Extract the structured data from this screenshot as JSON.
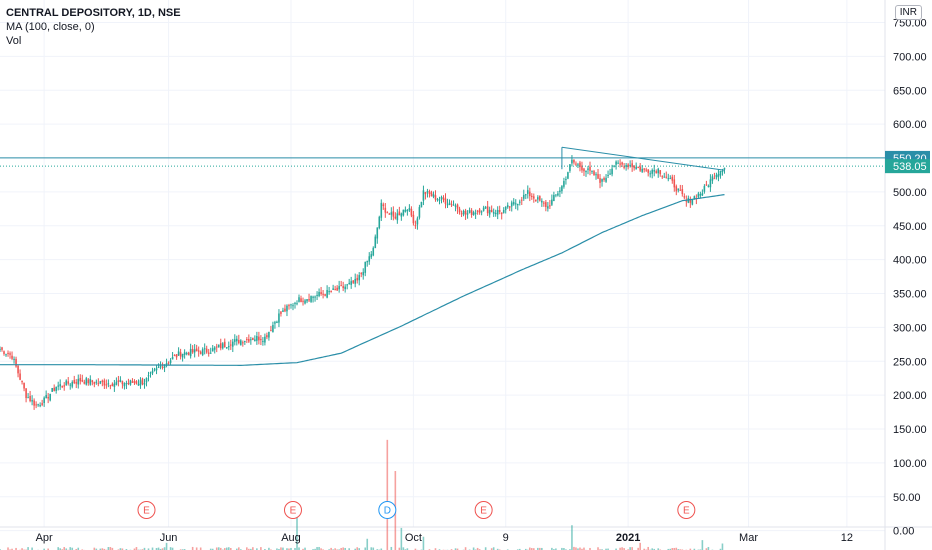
{
  "chart_data": {
    "type": "candlestick",
    "title": "CENTRAL DEPOSITORY, 1D, NSE",
    "indicators": [
      "MA (100, close, 0)",
      "Vol"
    ],
    "currency": "INR",
    "price_axis": {
      "min": -30,
      "max": 770,
      "ticks": [
        "750.00",
        "700.00",
        "650.00",
        "600.00",
        "550.00",
        "500.00",
        "450.00",
        "400.00",
        "350.00",
        "300.00",
        "250.00",
        "200.00",
        "150.00",
        "100.00",
        "50.00",
        "0.00"
      ],
      "tick_values": [
        750,
        700,
        650,
        600,
        550,
        500,
        450,
        400,
        350,
        300,
        250,
        200,
        150,
        100,
        50,
        0
      ]
    },
    "time_axis": {
      "labels": [
        "Apr",
        "Jun",
        "Aug",
        "Oct",
        "9",
        "2021",
        "Mar",
        "12"
      ],
      "label_days": [
        22,
        84,
        145,
        206,
        252,
        313,
        373,
        422
      ],
      "bold": [
        "2021"
      ],
      "days_visible": 441
    },
    "price_labels": [
      {
        "text": "550.20",
        "value": 550.2,
        "color": "#2a8ea8"
      },
      {
        "text": "538.05",
        "value": 538.05,
        "color": "#26a69a"
      }
    ],
    "horizontal_line": {
      "value": 550.2,
      "color": "#2a8ea8"
    },
    "close_line": {
      "value": 538.05,
      "color": "#26a69a"
    },
    "trendlines": [
      {
        "d1": 280,
        "v1": 566,
        "d2": 361,
        "v2": 532,
        "color": "#2a8ea8"
      }
    ],
    "price_anchors": [
      [
        0,
        268
      ],
      [
        6,
        258
      ],
      [
        13,
        200
      ],
      [
        18,
        185
      ],
      [
        22,
        192
      ],
      [
        28,
        213
      ],
      [
        40,
        222
      ],
      [
        50,
        218
      ],
      [
        63,
        218
      ],
      [
        72,
        220
      ],
      [
        80,
        243
      ],
      [
        90,
        262
      ],
      [
        105,
        266
      ],
      [
        115,
        278
      ],
      [
        125,
        284
      ],
      [
        132,
        285
      ],
      [
        139,
        318
      ],
      [
        148,
        340
      ],
      [
        168,
        355
      ],
      [
        178,
        368
      ],
      [
        182,
        392
      ],
      [
        186,
        415
      ],
      [
        190,
        480
      ],
      [
        196,
        462
      ],
      [
        203,
        478
      ],
      [
        207,
        452
      ],
      [
        211,
        500
      ],
      [
        217,
        492
      ],
      [
        226,
        482
      ],
      [
        232,
        467
      ],
      [
        240,
        475
      ],
      [
        250,
        470
      ],
      [
        257,
        484
      ],
      [
        263,
        498
      ],
      [
        273,
        478
      ],
      [
        280,
        508
      ],
      [
        285,
        545
      ],
      [
        296,
        525
      ],
      [
        300,
        515
      ],
      [
        306,
        540
      ],
      [
        314,
        540
      ],
      [
        321,
        532
      ],
      [
        328,
        533
      ],
      [
        336,
        510
      ],
      [
        342,
        485
      ],
      [
        350,
        500
      ],
      [
        356,
        525
      ],
      [
        361,
        538
      ]
    ],
    "ma_anchors": [
      [
        0,
        245
      ],
      [
        40,
        245
      ],
      [
        120,
        244
      ],
      [
        148,
        248
      ],
      [
        170,
        262
      ],
      [
        200,
        302
      ],
      [
        230,
        345
      ],
      [
        260,
        385
      ],
      [
        280,
        410
      ],
      [
        300,
        440
      ],
      [
        320,
        465
      ],
      [
        340,
        487
      ],
      [
        361,
        496
      ]
    ],
    "volume": {
      "spikes": [
        [
          83,
          16
        ],
        [
          148,
          54
        ],
        [
          183,
          22
        ],
        [
          193,
          168
        ],
        [
          197,
          122
        ],
        [
          200,
          38
        ],
        [
          211,
          25
        ],
        [
          285,
          42
        ],
        [
          319,
          16
        ],
        [
          350,
          20
        ],
        [
          360,
          15
        ]
      ],
      "events": [
        {
          "day": 73,
          "text": "E",
          "color": "#ef5350"
        },
        {
          "day": 146,
          "text": "E",
          "color": "#ef5350"
        },
        {
          "day": 193,
          "text": "D",
          "color": "#2196f3"
        },
        {
          "day": 241,
          "text": "E",
          "color": "#ef5350"
        },
        {
          "day": 342,
          "text": "E",
          "color": "#ef5350"
        }
      ]
    },
    "colors": {
      "up": "#26a69a",
      "down": "#ef5350",
      "ma": "#2a8ea8",
      "grid": "#f0f3fa",
      "axis_text": "#131722"
    }
  }
}
